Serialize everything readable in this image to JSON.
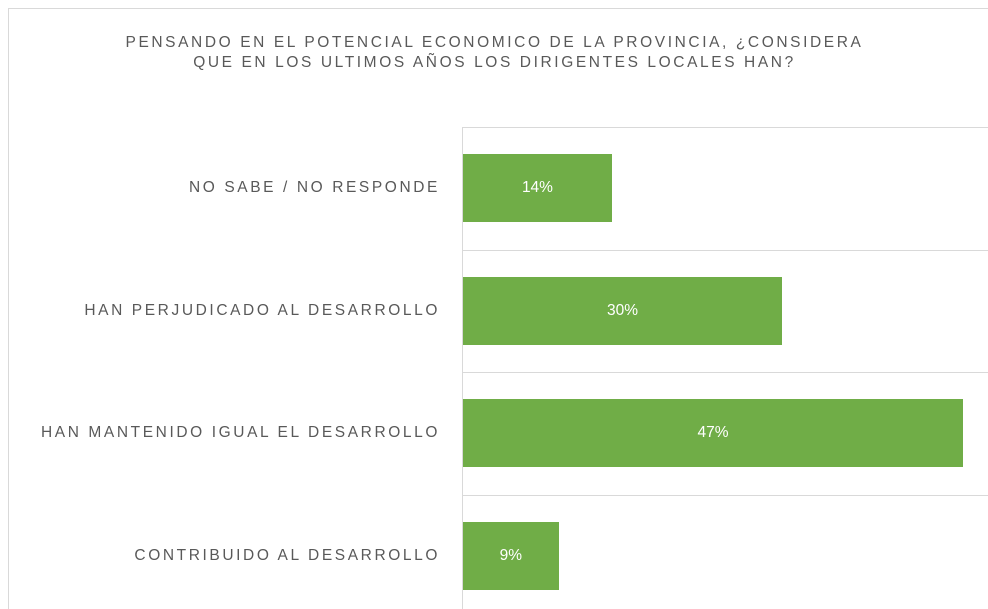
{
  "chart_data": {
    "type": "bar",
    "orientation": "horizontal",
    "title": "PENSANDO EN EL POTENCIAL ECONOMICO DE LA PROVINCIA, ¿CONSIDERA QUE EN LOS ULTIMOS AÑOS LOS DIRIGENTES LOCALES HAN?",
    "categories": [
      "NO SABE / NO RESPONDE",
      "HAN PERJUDICADO AL DESARROLLO",
      "HAN MANTENIDO IGUAL EL DESARROLLO",
      "CONTRIBUIDO AL DESARROLLO"
    ],
    "values": [
      14,
      30,
      47,
      9
    ],
    "value_labels": [
      "14%",
      "30%",
      "47%",
      "9%"
    ],
    "color": "#70ad47",
    "grid": true
  }
}
